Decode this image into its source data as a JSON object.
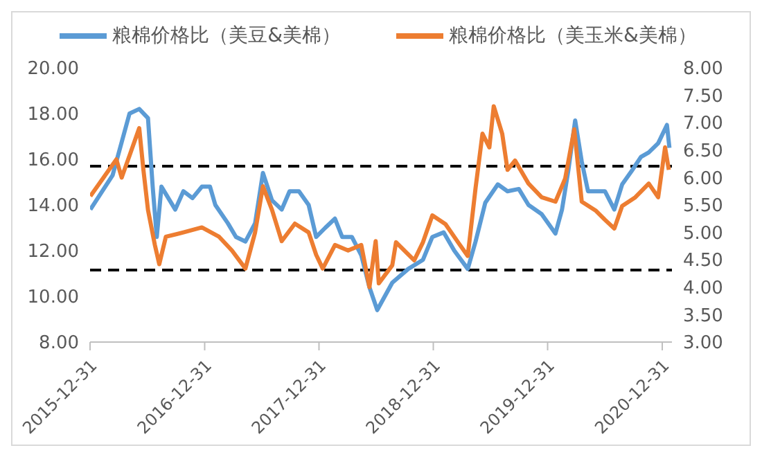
{
  "chart_data": {
    "type": "line",
    "xlim": [
      "2015-12-31",
      "2021-01-31"
    ],
    "xticks": [
      "2015-12-31",
      "2016-12-31",
      "2017-12-31",
      "2018-12-31",
      "2019-12-31",
      "2020-12-31"
    ],
    "ylim": [
      8,
      20
    ],
    "yticks": [
      {
        "value": 8,
        "label": "8.00"
      },
      {
        "value": 10,
        "label": "10.00"
      },
      {
        "value": 12,
        "label": "12.00"
      },
      {
        "value": 14,
        "label": "14.00"
      },
      {
        "value": 16,
        "label": "16.00"
      },
      {
        "value": 18,
        "label": "18.00"
      },
      {
        "value": 20,
        "label": "20.00"
      }
    ],
    "y2lim": [
      3,
      8
    ],
    "y2ticks": [
      {
        "value": 3,
        "label": "3.00"
      },
      {
        "value": 3.5,
        "label": "3.50"
      },
      {
        "value": 4,
        "label": "4.00"
      },
      {
        "value": 4.5,
        "label": "4.50"
      },
      {
        "value": 5,
        "label": "5.00"
      },
      {
        "value": 5.5,
        "label": "5.50"
      },
      {
        "value": 6,
        "label": "6.00"
      },
      {
        "value": 6.5,
        "label": "6.50"
      },
      {
        "value": 7,
        "label": "7.00"
      },
      {
        "value": 7.5,
        "label": "7.50"
      },
      {
        "value": 8,
        "label": "8.00"
      }
    ],
    "grid": false,
    "legend": "top",
    "marker": "none",
    "ref_lines": [
      {
        "axis": "y",
        "value": 15.7,
        "color": "#000000",
        "line_style": "dashed"
      },
      {
        "axis": "y",
        "value": 11.15,
        "color": "#000000",
        "line_style": "dashed"
      }
    ],
    "series": [
      {
        "name": "粮棉价格比（美豆&美棉）",
        "color": "#5b9bd5",
        "axis": "y",
        "x": [
          "2016-01-01",
          "2016-03-12",
          "2016-05-05",
          "2016-06-05",
          "2016-07-03",
          "2016-07-18",
          "2016-07-31",
          "2016-08-15",
          "2016-09-28",
          "2016-10-24",
          "2016-11-22",
          "2016-12-22",
          "2017-01-17",
          "2017-02-03",
          "2017-03-15",
          "2017-04-10",
          "2017-05-10",
          "2017-06-10",
          "2017-07-05",
          "2017-08-03",
          "2017-09-03",
          "2017-09-28",
          "2017-10-28",
          "2017-11-28",
          "2017-12-22",
          "2018-01-20",
          "2018-02-20",
          "2018-03-15",
          "2018-04-15",
          "2018-05-15",
          "2018-06-10",
          "2018-07-05",
          "2018-08-22",
          "2018-10-12",
          "2018-11-28",
          "2018-12-28",
          "2019-02-02",
          "2019-03-08",
          "2019-04-20",
          "2019-05-15",
          "2019-06-15",
          "2019-07-25",
          "2019-08-25",
          "2019-09-30",
          "2019-10-31",
          "2019-12-12",
          "2020-01-25",
          "2020-02-15",
          "2020-03-06",
          "2020-03-28",
          "2020-04-18",
          "2020-05-08",
          "2020-07-01",
          "2020-07-31",
          "2020-08-25",
          "2020-09-25",
          "2020-10-24",
          "2020-11-18",
          "2020-12-18",
          "2021-01-15",
          "2021-01-23"
        ],
        "values": [
          13.8,
          15.3,
          18.0,
          18.2,
          17.8,
          14.8,
          12.6,
          14.8,
          13.8,
          14.6,
          14.3,
          14.8,
          14.8,
          14.0,
          13.2,
          12.6,
          12.4,
          13.2,
          15.4,
          14.2,
          13.8,
          14.6,
          14.6,
          14.0,
          12.6,
          13.0,
          13.4,
          12.6,
          12.6,
          11.8,
          10.4,
          9.4,
          10.6,
          11.2,
          11.6,
          12.6,
          12.8,
          12.0,
          11.2,
          12.4,
          14.1,
          14.9,
          14.6,
          14.7,
          14.0,
          13.6,
          12.75,
          13.8,
          15.5,
          17.7,
          15.9,
          14.6,
          14.6,
          13.8,
          14.9,
          15.5,
          16.1,
          16.3,
          16.7,
          17.5,
          16.5
        ]
      },
      {
        "name": "粮棉价格比（美玉米&美棉）",
        "color": "#ed7d31",
        "axis": "y2",
        "x": [
          "2016-01-01",
          "2016-02-12",
          "2016-03-24",
          "2016-04-10",
          "2016-05-05",
          "2016-06-05",
          "2016-06-18",
          "2016-07-03",
          "2016-07-25",
          "2016-08-08",
          "2016-08-29",
          "2016-10-24",
          "2016-12-22",
          "2017-02-15",
          "2017-03-28",
          "2017-05-10",
          "2017-06-10",
          "2017-07-05",
          "2017-08-03",
          "2017-09-03",
          "2017-10-15",
          "2017-11-28",
          "2017-12-22",
          "2018-01-12",
          "2018-02-20",
          "2018-04-03",
          "2018-05-15",
          "2018-06-10",
          "2018-06-30",
          "2018-07-10",
          "2018-08-22",
          "2018-09-03",
          "2018-10-03",
          "2018-10-31",
          "2018-11-28",
          "2018-12-28",
          "2019-02-08",
          "2019-03-20",
          "2019-04-20",
          "2019-05-15",
          "2019-06-06",
          "2019-06-28",
          "2019-07-12",
          "2019-08-08",
          "2019-08-25",
          "2019-09-18",
          "2019-10-31",
          "2019-12-12",
          "2020-01-25",
          "2020-02-25",
          "2020-03-25",
          "2020-04-18",
          "2020-06-01",
          "2020-07-01",
          "2020-07-31",
          "2020-08-25",
          "2020-10-06",
          "2020-11-18",
          "2020-12-18",
          "2021-01-09",
          "2021-01-21"
        ],
        "values": [
          5.66,
          6.0,
          6.33,
          6.0,
          6.4,
          6.9,
          6.16,
          5.41,
          4.77,
          4.42,
          4.92,
          5.0,
          5.09,
          4.92,
          4.67,
          4.34,
          5.0,
          5.84,
          5.41,
          4.84,
          5.16,
          5.0,
          4.59,
          4.34,
          4.77,
          4.67,
          4.77,
          4.0,
          4.84,
          4.07,
          4.4,
          4.82,
          4.65,
          4.49,
          4.82,
          5.31,
          5.15,
          4.82,
          4.57,
          5.81,
          6.8,
          6.55,
          7.3,
          6.8,
          6.14,
          6.31,
          5.89,
          5.64,
          5.56,
          5.98,
          6.88,
          5.56,
          5.4,
          5.23,
          5.07,
          5.48,
          5.64,
          5.89,
          5.64,
          6.55,
          6.14
        ]
      }
    ]
  }
}
